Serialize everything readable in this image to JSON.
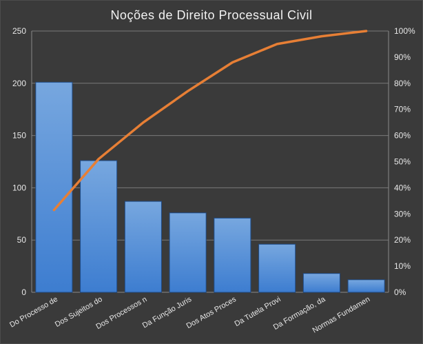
{
  "chart_data": {
    "type": "bar",
    "title": "Noções de Direito Processual Civil",
    "categories": [
      "Do Processo de",
      "Dos Sujeitos do",
      "Dos Processos n",
      "Da Função Juris",
      "Dos Atos Proces",
      "Da Tutela Provi",
      "Da Formação, da",
      "Normas Fundamen"
    ],
    "series": [
      {
        "type": "bar",
        "values": [
          201,
          126,
          87,
          76,
          71,
          46,
          18,
          12
        ]
      },
      {
        "type": "line",
        "axis": "right",
        "values": [
          31.5,
          51,
          65,
          77,
          88,
          95,
          98,
          100
        ]
      }
    ],
    "ylim": [
      0,
      250
    ],
    "y_ticks": [
      "0",
      "50",
      "100",
      "150",
      "200",
      "250"
    ],
    "y2lim": [
      0,
      100
    ],
    "y2_ticks": [
      "0%",
      "10%",
      "20%",
      "30%",
      "40%",
      "50%",
      "60%",
      "70%",
      "80%",
      "90%",
      "100%"
    ],
    "grid": true,
    "legend": "none",
    "colors": {
      "background": "#3a3a3a",
      "bar_top": "#77a7df",
      "bar_bottom": "#3d7dd0",
      "bar_border": "#1f4c88",
      "line": "#e77f35",
      "grid": "#7a7a7a",
      "text": "#f2f2f2"
    }
  }
}
